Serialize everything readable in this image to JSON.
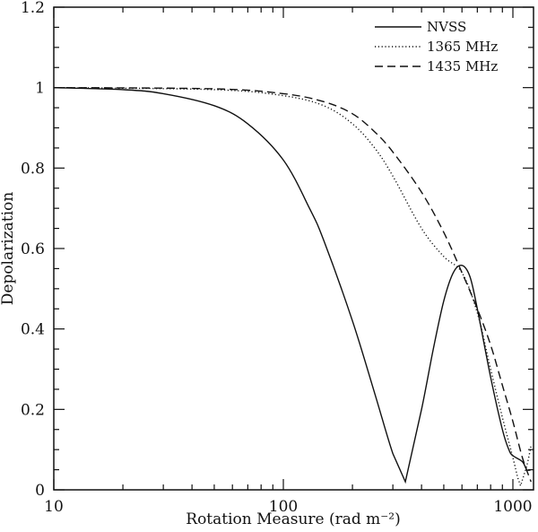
{
  "chart_data": {
    "type": "line",
    "title": "",
    "xlabel": "Rotation Measure (rad m⁻²)",
    "ylabel": "Depolarization",
    "xscale": "log",
    "xlim": [
      10,
      1250
    ],
    "ylim": [
      0,
      1.2
    ],
    "x_major_ticks": [
      10,
      100,
      1000
    ],
    "x_tick_labels": [
      "10",
      "100",
      "1000"
    ],
    "y_major_ticks": [
      0,
      0.2,
      0.4,
      0.6,
      0.8,
      1,
      1.2
    ],
    "y_tick_labels": [
      "0",
      "0.2",
      "0.4",
      "0.6",
      "0.8",
      "1",
      "1.2"
    ],
    "y_minor_step": 0.05,
    "grid": false,
    "legend_position": "upper right",
    "series": [
      {
        "name": "NVSS",
        "style": "solid",
        "x": [
          10,
          20,
          30,
          50,
          70,
          100,
          130,
          150,
          200,
          250,
          300,
          340,
          400,
          450,
          500,
          550,
          600,
          650,
          700,
          800,
          900,
          960,
          1000,
          1100,
          1150,
          1200
        ],
        "y": [
          1.0,
          0.995,
          0.985,
          0.955,
          0.91,
          0.82,
          0.7,
          0.62,
          0.42,
          0.24,
          0.09,
          0.02,
          0.2,
          0.35,
          0.47,
          0.54,
          0.558,
          0.53,
          0.45,
          0.28,
          0.15,
          0.1,
          0.085,
          0.07,
          0.05,
          0.05
        ]
      },
      {
        "name": "1365 MHz",
        "style": "dotted",
        "x": [
          10,
          50,
          100,
          150,
          200,
          250,
          300,
          400,
          500,
          600,
          700,
          800,
          900,
          1000,
          1050,
          1080,
          1150,
          1200
        ],
        "y": [
          1.0,
          0.995,
          0.98,
          0.955,
          0.91,
          0.85,
          0.78,
          0.65,
          0.58,
          0.54,
          0.44,
          0.3,
          0.18,
          0.08,
          0.03,
          0.01,
          0.06,
          0.11
        ]
      },
      {
        "name": "1435 MHz",
        "style": "dashed",
        "x": [
          10,
          50,
          100,
          150,
          200,
          250,
          300,
          400,
          500,
          600,
          700,
          800,
          900,
          1000,
          1100,
          1200
        ],
        "y": [
          1.0,
          0.997,
          0.985,
          0.965,
          0.935,
          0.89,
          0.84,
          0.74,
          0.64,
          0.54,
          0.45,
          0.36,
          0.26,
          0.17,
          0.08,
          0.02
        ]
      }
    ]
  }
}
